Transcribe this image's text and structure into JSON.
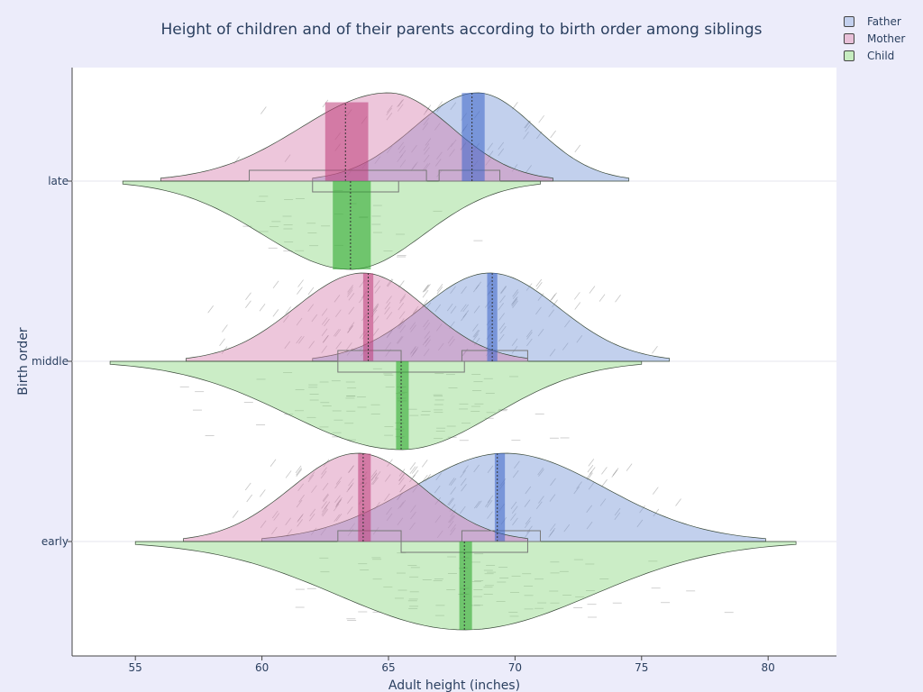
{
  "chart_data": {
    "type": "violin",
    "title": "Height of children and of their parents according to birth order among siblings",
    "xlabel": "Adult height (inches)",
    "ylabel": "Birth order",
    "xlim": [
      52.5,
      82.7
    ],
    "x_ticks": [
      55,
      60,
      65,
      70,
      75,
      80
    ],
    "categories": [
      "late",
      "middle",
      "early"
    ],
    "legend_position": "top-right",
    "series": [
      {
        "name": "Father",
        "side": "positive",
        "color": "#6b8fd6",
        "stats": {
          "late": {
            "q1": 67.0,
            "median": 68.3,
            "q3": 69.4,
            "mean_lo": 67.9,
            "mean_hi": 68.8,
            "min": 62.0,
            "max": 74.5,
            "peak": 68.5
          },
          "middle": {
            "q1": 67.9,
            "median": 69.1,
            "q3": 70.5,
            "mean_lo": 68.9,
            "mean_hi": 69.3,
            "min": 62.0,
            "max": 76.1,
            "peak": 69.0
          },
          "early": {
            "q1": 67.9,
            "median": 69.3,
            "q3": 71.0,
            "mean_lo": 69.2,
            "mean_hi": 69.6,
            "min": 60.0,
            "max": 79.9,
            "peak": 69.6
          }
        }
      },
      {
        "name": "Mother",
        "side": "positive",
        "color": "#d98ab8",
        "stats": {
          "late": {
            "q1": 59.5,
            "median": 63.3,
            "q3": 66.5,
            "mean_lo": 62.5,
            "mean_hi": 64.2,
            "min": 56.0,
            "max": 71.5,
            "peak": 65.0
          },
          "middle": {
            "q1": 63.0,
            "median": 64.2,
            "q3": 65.5,
            "mean_lo": 64.0,
            "mean_hi": 64.4,
            "min": 57.0,
            "max": 70.5,
            "peak": 64.0
          },
          "early": {
            "q1": 63.0,
            "median": 64.0,
            "q3": 65.5,
            "mean_lo": 63.8,
            "mean_hi": 64.3,
            "min": 56.9,
            "max": 70.5,
            "peak": 63.8
          }
        }
      },
      {
        "name": "Child",
        "side": "negative",
        "color": "#8fd882",
        "stats": {
          "late": {
            "q1": 62.0,
            "median": 63.5,
            "q3": 65.4,
            "mean_lo": 62.8,
            "mean_hi": 64.3,
            "min": 54.5,
            "max": 71.0,
            "peak": 63.5
          },
          "middle": {
            "q1": 63.0,
            "median": 65.5,
            "q3": 68.0,
            "mean_lo": 65.3,
            "mean_hi": 65.8,
            "min": 54.0,
            "max": 75.0,
            "peak": 65.5
          },
          "early": {
            "q1": 65.5,
            "median": 68.0,
            "q3": 70.5,
            "mean_lo": 67.8,
            "mean_hi": 68.3,
            "min": 55.0,
            "max": 81.1,
            "peak": 68.0
          }
        }
      }
    ]
  }
}
